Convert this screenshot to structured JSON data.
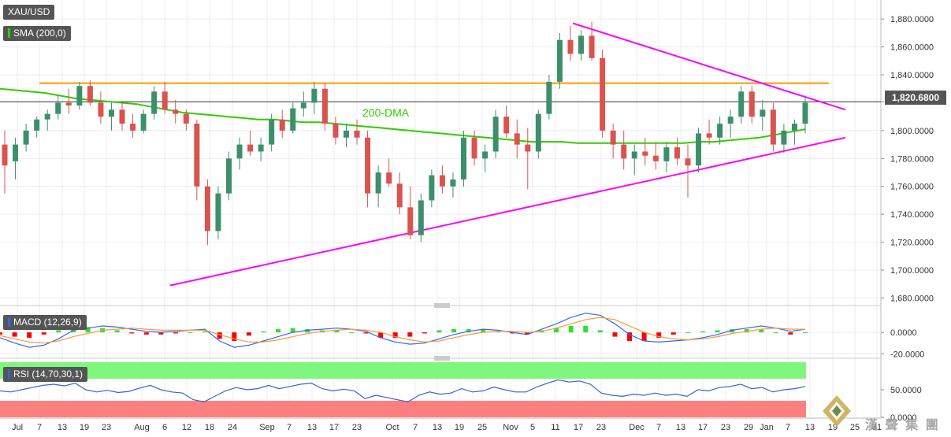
{
  "symbol": "XAU/USD",
  "indicators": {
    "sma": "SMA (200,0)",
    "macd": "MACD (12,26,9)",
    "rsi": "RSI (14,70,30,1)"
  },
  "annotation": "200-DMA",
  "current_price_label": "1,820.6800",
  "watermark_text": "漢 聲 集 團",
  "colors": {
    "up": "#3d8f6c",
    "down": "#d9534f",
    "sma": "#33cc00",
    "trendline": "#ff00ff",
    "resistance": "#ff9900",
    "macd_line": "#3366ff",
    "signal_line": "#ff9933",
    "hist_pos": "#33dd33",
    "hist_neg": "#ff0000",
    "rsi_line": "#3366cc",
    "rsi_overbought": "#7ff77f",
    "rsi_oversold": "#ff7f7f"
  },
  "chart_data": [
    {
      "type": "candlestick",
      "name": "price",
      "y_ticks": [
        "1,880.0000",
        "1,860.0000",
        "1,840.0000",
        "1,820.6800",
        "1,800.0000",
        "1,780.0000",
        "1,760.0000",
        "1,740.0000",
        "1,720.0000",
        "1,700.0000",
        "1,680.0000"
      ],
      "ylim": [
        1678,
        1888
      ],
      "x_ticks": [
        "Jul",
        "7",
        "13",
        "19",
        "23",
        "Aug",
        "6",
        "12",
        "18",
        "24",
        "Sep",
        "7",
        "13",
        "17",
        "23",
        "Oct",
        "7",
        "13",
        "19",
        "25",
        "Nov",
        "5",
        "11",
        "17",
        "23",
        "Dec",
        "7",
        "13",
        "17",
        "23",
        "29",
        "Jan",
        "7",
        "13",
        "19",
        "25",
        "31"
      ],
      "resistance": 1834,
      "last_price": 1820.68,
      "sma_200": [
        1830,
        1829,
        1828,
        1827,
        1825,
        1823,
        1822,
        1821,
        1820,
        1819,
        1817,
        1815,
        1813,
        1812,
        1811,
        1810,
        1809,
        1808,
        1808,
        1807,
        1806,
        1806,
        1805,
        1804,
        1803,
        1802,
        1801,
        1800,
        1799,
        1798,
        1797,
        1796,
        1795,
        1794,
        1793,
        1792,
        1792,
        1792,
        1791,
        1791,
        1791,
        1791,
        1791,
        1791,
        1791,
        1791,
        1792,
        1792,
        1793,
        1794,
        1795,
        1797,
        1799,
        1801
      ],
      "candles_ohlc": [
        [
          1790,
          1800,
          1755,
          1775
        ],
        [
          1778,
          1795,
          1765,
          1790
        ],
        [
          1790,
          1805,
          1785,
          1800
        ],
        [
          1800,
          1810,
          1795,
          1808
        ],
        [
          1808,
          1815,
          1800,
          1812
        ],
        [
          1812,
          1825,
          1808,
          1820
        ],
        [
          1820,
          1830,
          1812,
          1818
        ],
        [
          1818,
          1835,
          1815,
          1832
        ],
        [
          1832,
          1836,
          1818,
          1820
        ],
        [
          1820,
          1828,
          1805,
          1810
        ],
        [
          1810,
          1820,
          1800,
          1815
        ],
        [
          1815,
          1820,
          1800,
          1805
        ],
        [
          1805,
          1812,
          1795,
          1800
        ],
        [
          1800,
          1815,
          1798,
          1812
        ],
        [
          1812,
          1832,
          1808,
          1828
        ],
        [
          1828,
          1835,
          1812,
          1815
        ],
        [
          1815,
          1822,
          1805,
          1812
        ],
        [
          1812,
          1815,
          1800,
          1805
        ],
        [
          1805,
          1808,
          1750,
          1760
        ],
        [
          1760,
          1765,
          1718,
          1728
        ],
        [
          1728,
          1760,
          1722,
          1755
        ],
        [
          1755,
          1785,
          1750,
          1780
        ],
        [
          1780,
          1795,
          1772,
          1790
        ],
        [
          1790,
          1800,
          1782,
          1785
        ],
        [
          1785,
          1795,
          1778,
          1790
        ],
        [
          1790,
          1812,
          1785,
          1808
        ],
        [
          1808,
          1815,
          1795,
          1800
        ],
        [
          1800,
          1820,
          1798,
          1816
        ],
        [
          1816,
          1828,
          1810,
          1820
        ],
        [
          1820,
          1835,
          1812,
          1830
        ],
        [
          1830,
          1834,
          1800,
          1805
        ],
        [
          1805,
          1810,
          1790,
          1795
        ],
        [
          1795,
          1805,
          1788,
          1800
        ],
        [
          1800,
          1808,
          1790,
          1795
        ],
        [
          1795,
          1800,
          1745,
          1755
        ],
        [
          1755,
          1775,
          1745,
          1770
        ],
        [
          1770,
          1780,
          1760,
          1762
        ],
        [
          1762,
          1770,
          1740,
          1745
        ],
        [
          1745,
          1760,
          1722,
          1725
        ],
        [
          1725,
          1755,
          1720,
          1750
        ],
        [
          1750,
          1772,
          1745,
          1768
        ],
        [
          1768,
          1775,
          1755,
          1760
        ],
        [
          1760,
          1770,
          1752,
          1765
        ],
        [
          1765,
          1800,
          1760,
          1795
        ],
        [
          1795,
          1800,
          1775,
          1780
        ],
        [
          1780,
          1790,
          1770,
          1785
        ],
        [
          1785,
          1815,
          1780,
          1810
        ],
        [
          1810,
          1818,
          1795,
          1798
        ],
        [
          1798,
          1808,
          1780,
          1790
        ],
        [
          1790,
          1802,
          1758,
          1785
        ],
        [
          1785,
          1815,
          1780,
          1812
        ],
        [
          1812,
          1840,
          1808,
          1835
        ],
        [
          1835,
          1870,
          1830,
          1865
        ],
        [
          1865,
          1875,
          1850,
          1855
        ],
        [
          1855,
          1872,
          1850,
          1868
        ],
        [
          1868,
          1878,
          1850,
          1852
        ],
        [
          1852,
          1858,
          1795,
          1800
        ],
        [
          1800,
          1805,
          1780,
          1790
        ],
        [
          1790,
          1800,
          1772,
          1780
        ],
        [
          1780,
          1790,
          1768,
          1785
        ],
        [
          1785,
          1795,
          1775,
          1782
        ],
        [
          1782,
          1792,
          1772,
          1778
        ],
        [
          1778,
          1792,
          1770,
          1788
        ],
        [
          1788,
          1795,
          1775,
          1780
        ],
        [
          1780,
          1790,
          1752,
          1775
        ],
        [
          1775,
          1802,
          1770,
          1798
        ],
        [
          1798,
          1808,
          1790,
          1795
        ],
        [
          1795,
          1810,
          1790,
          1805
        ],
        [
          1805,
          1815,
          1795,
          1810
        ],
        [
          1810,
          1832,
          1805,
          1828
        ],
        [
          1828,
          1832,
          1805,
          1810
        ],
        [
          1810,
          1822,
          1800,
          1815
        ],
        [
          1815,
          1820,
          1785,
          1790
        ],
        [
          1790,
          1805,
          1784,
          1800
        ],
        [
          1800,
          1808,
          1790,
          1805
        ],
        [
          1805,
          1825,
          1798,
          1820
        ]
      ]
    },
    {
      "type": "line",
      "name": "MACD",
      "y_ticks": [
        "0.0000",
        "-20.0000"
      ],
      "ylim": [
        -22,
        20
      ],
      "series": [
        {
          "name": "MACD",
          "values": [
            -5,
            -10,
            -14,
            -12,
            -6,
            2,
            4,
            6,
            5,
            3,
            1,
            0,
            1,
            2,
            3,
            -8,
            -14,
            -12,
            -8,
            -4,
            0,
            2,
            3,
            4,
            3,
            1,
            -5,
            -9,
            -11,
            -10,
            -6,
            -2,
            1,
            3,
            2,
            0,
            -2,
            3,
            8,
            14,
            18,
            16,
            8,
            -2,
            -8,
            -9,
            -8,
            -7,
            -5,
            -2,
            2,
            4,
            6,
            4,
            1,
            3
          ]
        },
        {
          "name": "Signal",
          "values": [
            -3,
            -6,
            -9,
            -10,
            -8,
            -4,
            -1,
            2,
            3,
            4,
            3,
            2,
            2,
            2,
            2,
            -2,
            -6,
            -9,
            -9,
            -7,
            -4,
            -1,
            1,
            2,
            3,
            2,
            0,
            -4,
            -7,
            -9,
            -8,
            -5,
            -2,
            0,
            1,
            1,
            0,
            1,
            4,
            8,
            12,
            14,
            12,
            6,
            0,
            -4,
            -6,
            -7,
            -6,
            -4,
            -1,
            1,
            3,
            4,
            3,
            3
          ]
        }
      ],
      "histogram": [
        -2,
        -4,
        -5,
        -2,
        2,
        6,
        5,
        4,
        2,
        -1,
        -2,
        -2,
        -1,
        0,
        1,
        -6,
        -8,
        -3,
        1,
        3,
        4,
        3,
        2,
        2,
        0,
        -1,
        -5,
        -5,
        -4,
        -1,
        2,
        3,
        3,
        3,
        1,
        -1,
        -2,
        2,
        4,
        6,
        6,
        2,
        -4,
        -8,
        -8,
        -5,
        -2,
        0,
        1,
        2,
        3,
        3,
        3,
        0,
        -2,
        0
      ]
    },
    {
      "type": "line",
      "name": "RSI",
      "y_ticks": [
        "50.0000",
        "0.0000"
      ],
      "overbought": 70,
      "oversold": 30,
      "values": [
        48,
        46,
        50,
        54,
        58,
        60,
        57,
        62,
        50,
        46,
        49,
        45,
        47,
        53,
        58,
        50,
        46,
        44,
        32,
        28,
        38,
        48,
        54,
        50,
        52,
        58,
        52,
        56,
        60,
        62,
        52,
        48,
        51,
        48,
        34,
        40,
        36,
        32,
        28,
        40,
        46,
        42,
        44,
        52,
        46,
        48,
        55,
        50,
        46,
        46,
        55,
        62,
        68,
        64,
        66,
        60,
        44,
        40,
        38,
        42,
        40,
        44,
        40,
        42,
        38,
        50,
        48,
        54,
        56,
        60,
        52,
        54,
        46,
        50,
        52,
        56
      ]
    }
  ]
}
